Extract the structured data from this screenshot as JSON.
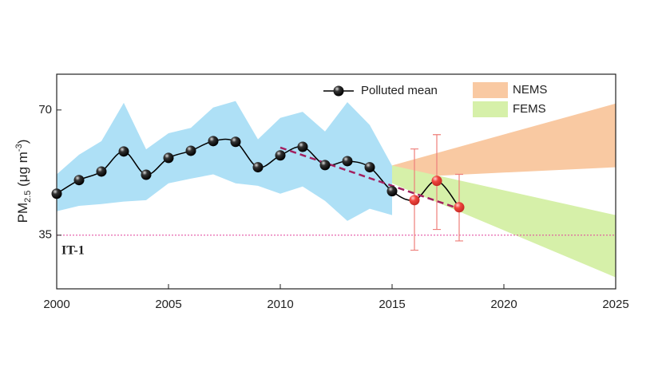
{
  "chart_data": {
    "type": "line",
    "xlim": [
      2000,
      2025
    ],
    "xticks": [
      2000,
      2005,
      2010,
      2015,
      2020,
      2025
    ],
    "ylim": [
      20,
      80
    ],
    "yticks": [
      35,
      70
    ],
    "y_label": {
      "main": "PM",
      "sub": "2.5",
      "unit": " (μg m",
      "sup": "-3",
      "close": ")"
    },
    "range": {
      "color": "#aee0f6",
      "x": [
        2000,
        2001,
        2002,
        2003,
        2004,
        2005,
        2006,
        2007,
        2008,
        2009,
        2010,
        2011,
        2012,
        2013,
        2014,
        2015
      ],
      "upper": [
        52,
        57.5,
        61.3,
        72,
        59,
        63.5,
        65,
        70.7,
        72.5,
        61.8,
        67.8,
        69.5,
        64,
        72.2,
        65.8,
        54.4
      ],
      "lower": [
        41.7,
        43.2,
        43.7,
        44.4,
        44.8,
        49.5,
        50.8,
        52,
        49.5,
        48.8,
        46.6,
        48.6,
        44.6,
        39,
        42.4,
        40.6
      ]
    },
    "bands": [
      {
        "name": "NEMS",
        "color": "#f9c9a2",
        "x": [
          2015,
          2025
        ],
        "upper": [
          54.5,
          71.8
        ],
        "lower": [
          51,
          54
        ]
      },
      {
        "name": "FEMS",
        "color": "#d6f0a9",
        "x": [
          2015,
          2025
        ],
        "upper": [
          54.5,
          40.6
        ],
        "lower": [
          49.5,
          23.2
        ]
      }
    ],
    "series": [
      {
        "name": "Polluted mean",
        "color": "#000000",
        "x": [
          2000,
          2001,
          2002,
          2003,
          2004,
          2005,
          2006,
          2007,
          2008,
          2009,
          2010,
          2011,
          2012,
          2013,
          2014,
          2015
        ],
        "values": [
          46.6,
          50.4,
          52.8,
          58.4,
          51.9,
          56.6,
          58.6,
          61.3,
          61.1,
          54,
          57.3,
          59.7,
          54.6,
          55.7,
          54,
          47.3
        ]
      },
      {
        "color": "#f0463f",
        "error_color": "#ee7f7a",
        "x": [
          2016,
          2017,
          2018
        ],
        "values": [
          44.8,
          50.2,
          42.8
        ],
        "upper": [
          59.1,
          63.1,
          52
        ],
        "lower": [
          30.8,
          36.6,
          33.4
        ]
      }
    ],
    "trend": {
      "color": "#a3205f",
      "x": [
        2010,
        2018
      ],
      "values": [
        59.5,
        42.4
      ]
    },
    "reference": {
      "value": 35,
      "label": "IT-1",
      "color": "#e0409a"
    }
  }
}
